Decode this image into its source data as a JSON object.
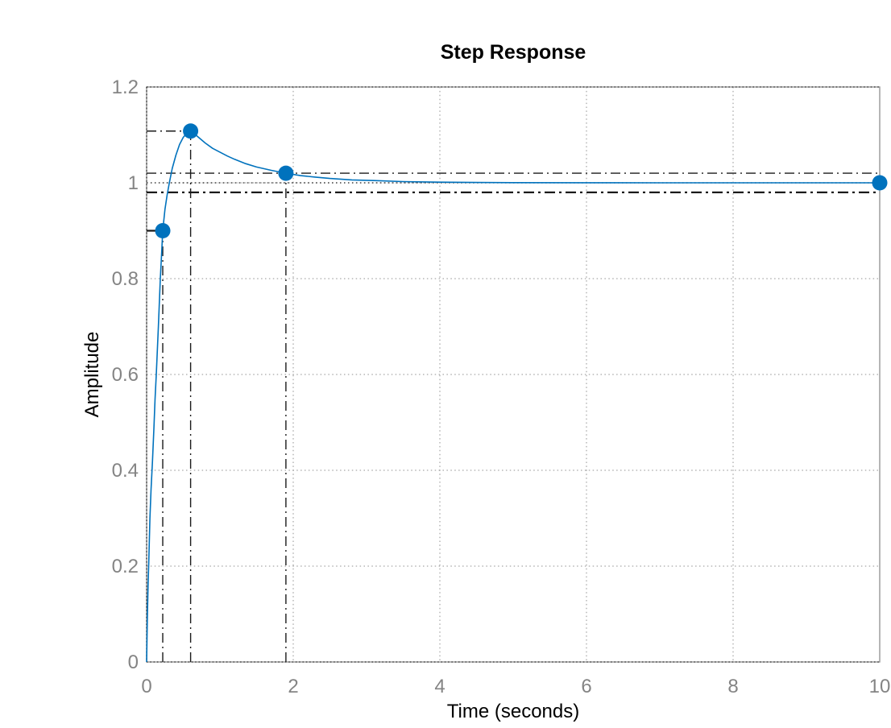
{
  "chart_data": {
    "type": "line",
    "title": "Step Response",
    "xlabel": "Time (seconds)",
    "ylabel": "Amplitude",
    "xlim": [
      0,
      10
    ],
    "ylim": [
      0,
      1.2
    ],
    "xticks": [
      0,
      2,
      4,
      6,
      8,
      10
    ],
    "xtick_labels": [
      "0",
      "2",
      "4",
      "6",
      "8",
      "10"
    ],
    "yticks": [
      0,
      0.2,
      0.4,
      0.6,
      0.8,
      1,
      1.2
    ],
    "ytick_labels": [
      "0",
      "0.2",
      "0.4",
      "0.6",
      "0.8",
      "1",
      "1.2"
    ],
    "grid": true,
    "legend": "none",
    "colors": {
      "line": "#0072BD",
      "marker": "#0072BD",
      "axis_box": "#8f8f8f",
      "tick_text": "#848484",
      "label_text": "#000000",
      "grid_line": "#757575",
      "annotation": "#1a1a1a"
    },
    "series": [
      {
        "name": "step-response",
        "t": [
          0,
          0.005,
          0.01,
          0.02,
          0.03,
          0.045,
          0.06,
          0.08,
          0.1,
          0.115,
          0.132,
          0.16,
          0.187,
          0.205,
          0.22,
          0.25,
          0.28,
          0.31,
          0.35,
          0.4,
          0.45,
          0.5,
          0.55,
          0.6,
          0.65,
          0.7,
          0.8,
          0.9,
          1.0,
          1.1,
          1.2,
          1.35,
          1.5,
          1.7,
          1.9,
          2.1,
          2.3,
          2.5,
          2.8,
          3.1,
          3.5,
          4.0,
          4.5,
          5.0,
          6.0,
          7.0,
          8.0,
          9.0,
          10.0
        ],
        "y": [
          0,
          0.05,
          0.09,
          0.16,
          0.21,
          0.3,
          0.36,
          0.42,
          0.49,
          0.55,
          0.6,
          0.7,
          0.8,
          0.855,
          0.9,
          0.945,
          0.975,
          1.0,
          1.03,
          1.058,
          1.08,
          1.095,
          1.104,
          1.108,
          1.103,
          1.096,
          1.083,
          1.072,
          1.064,
          1.056,
          1.049,
          1.04,
          1.033,
          1.026,
          1.02,
          1.015,
          1.012,
          1.009,
          1.006,
          1.0047,
          1.0025,
          1.0013,
          1.0007,
          1.0004,
          1.0001,
          1.0,
          1.0,
          1.0,
          1.0
        ]
      }
    ],
    "markers": [
      {
        "name": "rise-time-marker",
        "t": 0.22,
        "y": 0.9
      },
      {
        "name": "peak-response-marker",
        "t": 0.6,
        "y": 1.108
      },
      {
        "name": "settling-time-marker",
        "t": 1.9,
        "y": 1.02
      },
      {
        "name": "final-value-marker",
        "t": 10,
        "y": 1.0
      }
    ],
    "reference_lines": [
      {
        "name": "peak-amplitude-hline",
        "y": 1.108,
        "x1": 0,
        "x2": 0.6,
        "style": "dashdot"
      },
      {
        "name": "peak-time-vline",
        "x": 0.6,
        "y1": 0,
        "y2": 1.108,
        "style": "dashdot"
      },
      {
        "name": "settling-band-upper-hline",
        "y": 1.02,
        "x1": 0,
        "x2": 10,
        "style": "dashdot"
      },
      {
        "name": "settling-band-lower-hline",
        "y": 0.98,
        "x1": 0,
        "x2": 10,
        "style": "dashdot-thick"
      },
      {
        "name": "settling-time-vline",
        "x": 1.9,
        "y1": 0,
        "y2": 1.02,
        "style": "dashdot"
      },
      {
        "name": "rise-time-vline",
        "x": 0.22,
        "y1": 0,
        "y2": 0.9,
        "style": "dashdot"
      },
      {
        "name": "rise-amplitude-hline",
        "y": 0.9,
        "x1": 0,
        "x2": 0.22,
        "style": "solid"
      },
      {
        "name": "steady-state-line",
        "y": 1.0,
        "x1": 0,
        "x2": 10,
        "style": "dotted"
      }
    ]
  }
}
